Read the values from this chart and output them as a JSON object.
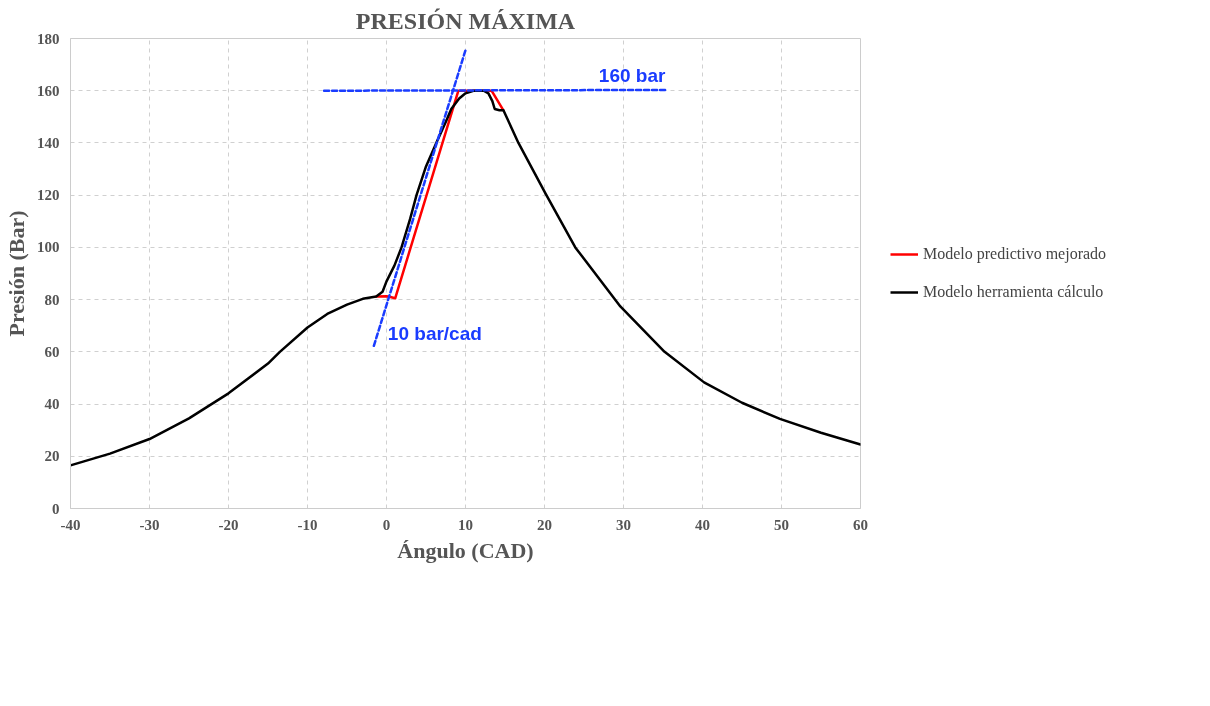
{
  "chart_data": {
    "type": "line",
    "title": "PRESIÓN MÁXIMA",
    "xlabel": "Ángulo (CAD)",
    "ylabel": "Presión (Bar)",
    "xlim": [
      -40,
      60
    ],
    "xticks": [
      -40,
      -30,
      -20,
      -10,
      0,
      10,
      20,
      30,
      40,
      50,
      60
    ],
    "ylim": [
      0,
      180
    ],
    "yticks": [
      0,
      20,
      40,
      60,
      80,
      100,
      120,
      140,
      160,
      180
    ],
    "grid": true,
    "legend": "right",
    "line_style": "solid",
    "series": [
      {
        "name": "Modelo predictivo mejorado",
        "color": "#ff0000",
        "x": [
          -1.3,
          0,
          0.5,
          1.1,
          9.1,
          13.3,
          14.8
        ],
        "values": [
          81.2,
          81.3,
          81,
          80.5,
          160,
          160,
          152.5
        ]
      },
      {
        "name": "Modelo herramienta cálculo",
        "color": "#000000",
        "x": [
          -40,
          -35,
          -30,
          -25,
          -20,
          -15,
          -13.5,
          -10,
          -7.5,
          -5,
          -3,
          -1.3,
          -0.5,
          0,
          1,
          1.9,
          3,
          3.8,
          5,
          6.3,
          7.5,
          8.2,
          9.2,
          10,
          11,
          12.3,
          12.9,
          13.4,
          13.7,
          14.3,
          14.8,
          16.7,
          20.1,
          23.9,
          29.6,
          35.2,
          40.2,
          45,
          49.8,
          55,
          60
        ],
        "values": [
          16.5,
          21,
          26.6,
          34.5,
          44.1,
          55.5,
          60,
          69.3,
          74.5,
          78.1,
          80.3,
          81.2,
          83,
          87,
          93,
          100,
          111,
          120,
          131,
          140,
          148,
          153,
          157,
          159,
          160,
          160,
          159,
          156,
          153,
          152.5,
          152.5,
          140,
          120.8,
          100,
          77.4,
          60,
          48.3,
          40.5,
          34.3,
          29,
          24.5
        ]
      },
      {
        "color": "#1a3cff",
        "line_style": "dashed",
        "x": [
          -7.9,
          35.3
        ],
        "values": [
          160,
          160.3
        ]
      },
      {
        "color": "#1a3cff",
        "line_style": "dashed",
        "x": [
          -1.6,
          10
        ],
        "values": [
          62.3,
          175.5
        ]
      }
    ],
    "annotations": [
      "160 bar",
      "10 bar/cad"
    ]
  }
}
